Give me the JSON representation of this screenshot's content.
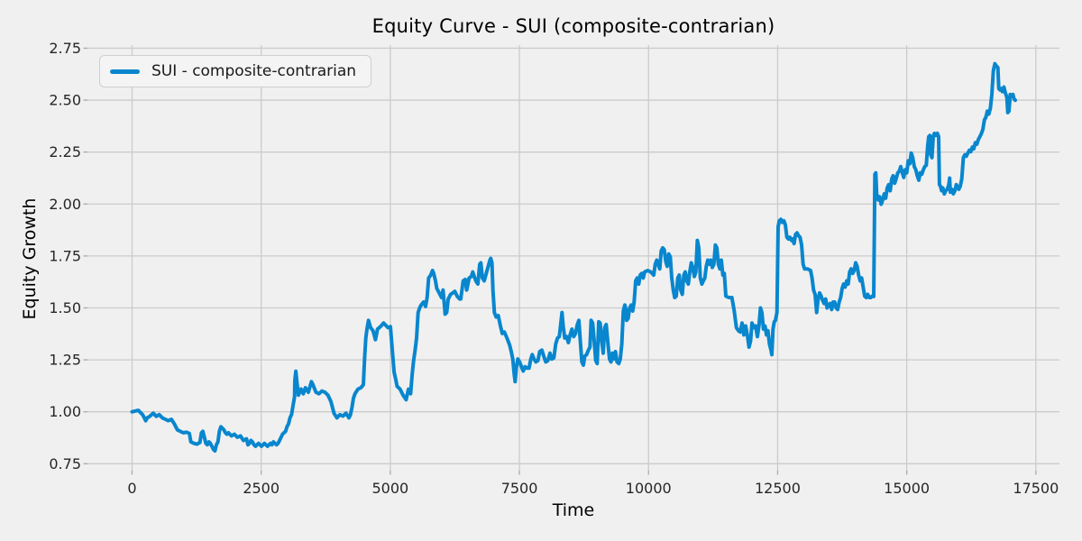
{
  "chart_data": {
    "type": "line",
    "title": "Equity Curve - SUI (composite-contrarian)",
    "xlabel": "Time",
    "ylabel": "Equity Growth",
    "background_color": "#f0f0f0",
    "grid": true,
    "grid_color": "#cbcbcb",
    "tick_color": "#262626",
    "tick_mark_color": "#a9a9a9",
    "xlim": [
      -864,
      17957
    ],
    "ylim": [
      0.7166,
      2.765
    ],
    "xticks": [
      {
        "value": 0,
        "label": "0"
      },
      {
        "value": 2500,
        "label": "2500"
      },
      {
        "value": 5000,
        "label": "5000"
      },
      {
        "value": 7500,
        "label": "7500"
      },
      {
        "value": 10000,
        "label": "10000"
      },
      {
        "value": 12500,
        "label": "12500"
      },
      {
        "value": 15000,
        "label": "15000"
      },
      {
        "value": 17500,
        "label": "17500"
      }
    ],
    "yticks": [
      {
        "value": 0.75,
        "label": "0.75"
      },
      {
        "value": 1.0,
        "label": "1.00"
      },
      {
        "value": 1.25,
        "label": "1.25"
      },
      {
        "value": 1.5,
        "label": "1.50"
      },
      {
        "value": 1.75,
        "label": "1.75"
      },
      {
        "value": 2.0,
        "label": "2.00"
      },
      {
        "value": 2.25,
        "label": "2.25"
      },
      {
        "value": 2.5,
        "label": "2.50"
      },
      {
        "value": 2.75,
        "label": "2.75"
      }
    ],
    "legend": {
      "position": "upper-left",
      "entries": [
        {
          "label": "SUI - composite-contrarian",
          "color": "#0886ce"
        }
      ]
    },
    "series": [
      {
        "name": "SUI - composite-contrarian",
        "color": "#0886ce",
        "line_width": 4,
        "x": [
          0,
          120,
          205,
          264,
          293,
          340,
          410,
          468,
          526,
          585,
          643,
          701,
          759,
          818,
          876,
          934,
          993,
          1051,
          1109,
          1138,
          1196,
          1255,
          1313,
          1342,
          1371,
          1400,
          1429,
          1458,
          1487,
          1516,
          1546,
          1575,
          1604,
          1633,
          1662,
          1691,
          1720,
          1749,
          1778,
          1807,
          1837,
          1866,
          1924,
          1982,
          2040,
          2099,
          2157,
          2215,
          2244,
          2273,
          2302,
          2331,
          2361,
          2390,
          2419,
          2448,
          2477,
          2506,
          2535,
          2564,
          2593,
          2622,
          2651,
          2680,
          2709,
          2738,
          2767,
          2797,
          2826,
          2855,
          2884,
          2913,
          2942,
          2971,
          3000,
          3029,
          3058,
          3087,
          3117,
          3146,
          3152,
          3170,
          3200,
          3222,
          3270,
          3315,
          3356,
          3414,
          3472,
          3502,
          3560,
          3618,
          3676,
          3734,
          3792,
          3850,
          3909,
          3967,
          4025,
          4083,
          4141,
          4200,
          4229,
          4258,
          4287,
          4316,
          4374,
          4432,
          4479,
          4502,
          4525,
          4549,
          4578,
          4618,
          4665,
          4712,
          4752,
          4811,
          4869,
          4898,
          4956,
          5003,
          5044,
          5073,
          5102,
          5131,
          5189,
          5247,
          5306,
          5352,
          5393,
          5422,
          5451,
          5480,
          5509,
          5538,
          5568,
          5597,
          5643,
          5684,
          5713,
          5742,
          5783,
          5818,
          5841,
          5876,
          5899,
          5946,
          5993,
          6022,
          6062,
          6092,
          6121,
          6167,
          6208,
          6249,
          6295,
          6342,
          6364,
          6411,
          6451,
          6480,
          6527,
          6568,
          6597,
          6626,
          6655,
          6696,
          6731,
          6754,
          6783,
          6818,
          6859,
          6899,
          6928,
          6946,
          6969,
          6987,
          7016,
          7051,
          7091,
          7132,
          7167,
          7208,
          7248,
          7283,
          7312,
          7341,
          7371,
          7400,
          7417,
          7440,
          7469,
          7504,
          7539,
          7574,
          7609,
          7644,
          7685,
          7720,
          7749,
          7784,
          7819,
          7859,
          7894,
          7935,
          7970,
          8011,
          8052,
          8092,
          8127,
          8168,
          8203,
          8238,
          8273,
          8302,
          8325,
          8348,
          8378,
          8413,
          8448,
          8482,
          8517,
          8552,
          8587,
          8622,
          8651,
          8680,
          8709,
          8738,
          8767,
          8802,
          8837,
          8866,
          8889,
          8918,
          8948,
          8977,
          9006,
          9035,
          9064,
          9093,
          9122,
          9151,
          9180,
          9215,
          9244,
          9273,
          9302,
          9331,
          9360,
          9390,
          9424,
          9453,
          9483,
          9512,
          9541,
          9564,
          9577,
          9606,
          9635,
          9664,
          9693,
          9722,
          9752,
          9781,
          9810,
          9839,
          9868,
          9897,
          9926,
          9984,
          10042,
          10101,
          10130,
          10159,
          10188,
          10217,
          10246,
          10275,
          10304,
          10334,
          10363,
          10392,
          10421,
          10450,
          10479,
          10508,
          10537,
          10566,
          10595,
          10625,
          10654,
          10683,
          10712,
          10741,
          10770,
          10799,
          10828,
          10857,
          10887,
          10916,
          10945,
          10974,
          11003,
          11032,
          11061,
          11090,
          11119,
          11148,
          11178,
          11207,
          11236,
          11265,
          11294,
          11323,
          11352,
          11381,
          11410,
          11439,
          11468,
          11497,
          11556,
          11614,
          11660,
          11701,
          11742,
          11777,
          11812,
          11847,
          11882,
          11917,
          11946,
          11975,
          12004,
          12039,
          12074,
          12109,
          12138,
          12167,
          12196,
          12225,
          12254,
          12284,
          12313,
          12342,
          12371,
          12388,
          12411,
          12435,
          12458,
          12487,
          12510,
          12533,
          12562,
          12592,
          12621,
          12650,
          12679,
          12708,
          12737,
          12766,
          12789,
          12818,
          12847,
          12876,
          12905,
          12934,
          12963,
          12993,
          13022,
          13080,
          13138,
          13167,
          13196,
          13226,
          13255,
          13284,
          13313,
          13342,
          13371,
          13400,
          13429,
          13458,
          13487,
          13517,
          13546,
          13575,
          13604,
          13633,
          13662,
          13691,
          13720,
          13749,
          13778,
          13807,
          13836,
          13866,
          13895,
          13924,
          13953,
          13982,
          14011,
          14040,
          14069,
          14098,
          14127,
          14156,
          14186,
          14215,
          14244,
          14273,
          14302,
          14331,
          14360,
          14383,
          14401,
          14418,
          14447,
          14476,
          14506,
          14535,
          14564,
          14593,
          14622,
          14651,
          14680,
          14709,
          14738,
          14767,
          14796,
          14826,
          14855,
          14884,
          14913,
          14942,
          14971,
          15000,
          15029,
          15058,
          15087,
          15116,
          15146,
          15175,
          15204,
          15233,
          15262,
          15291,
          15320,
          15349,
          15378,
          15407,
          15425,
          15448,
          15466,
          15489,
          15512,
          15535,
          15564,
          15593,
          15617,
          15634,
          15652,
          15675,
          15698,
          15727,
          15756,
          15785,
          15815,
          15831,
          15844,
          15873,
          15902,
          15931,
          15960,
          15989,
          16008,
          16037,
          16066,
          16095,
          16125,
          16154,
          16183,
          16212,
          16241,
          16270,
          16299,
          16328,
          16357,
          16386,
          16416,
          16445,
          16474,
          16503,
          16532,
          16561,
          16590,
          16619,
          16648,
          16677,
          16707,
          16736,
          16765,
          16782,
          16806,
          16829,
          16852,
          16881,
          16910,
          16939,
          16957,
          16980,
          17003,
          17027,
          17056,
          17079,
          17102
        ],
        "y": [
          1.0,
          1.007,
          0.986,
          0.957,
          0.971,
          0.978,
          0.993,
          0.978,
          0.986,
          0.971,
          0.964,
          0.957,
          0.964,
          0.942,
          0.913,
          0.906,
          0.899,
          0.902,
          0.896,
          0.855,
          0.848,
          0.844,
          0.852,
          0.899,
          0.906,
          0.877,
          0.848,
          0.841,
          0.855,
          0.848,
          0.834,
          0.819,
          0.812,
          0.841,
          0.855,
          0.906,
          0.928,
          0.921,
          0.913,
          0.899,
          0.892,
          0.899,
          0.884,
          0.892,
          0.877,
          0.884,
          0.862,
          0.87,
          0.841,
          0.848,
          0.862,
          0.855,
          0.841,
          0.834,
          0.841,
          0.848,
          0.841,
          0.834,
          0.841,
          0.848,
          0.841,
          0.834,
          0.841,
          0.848,
          0.841,
          0.855,
          0.848,
          0.841,
          0.848,
          0.862,
          0.877,
          0.892,
          0.899,
          0.906,
          0.928,
          0.942,
          0.971,
          0.986,
          1.03,
          1.073,
          1.152,
          1.195,
          1.123,
          1.08,
          1.11,
          1.087,
          1.116,
          1.094,
          1.145,
          1.13,
          1.094,
          1.087,
          1.1,
          1.094,
          1.08,
          1.05,
          0.993,
          0.971,
          0.986,
          0.979,
          0.993,
          0.971,
          0.986,
          1.022,
          1.065,
          1.087,
          1.109,
          1.116,
          1.13,
          1.253,
          1.355,
          1.398,
          1.44,
          1.405,
          1.39,
          1.347,
          1.398,
          1.41,
          1.427,
          1.42,
          1.405,
          1.41,
          1.28,
          1.19,
          1.16,
          1.123,
          1.109,
          1.08,
          1.058,
          1.109,
          1.087,
          1.174,
          1.246,
          1.297,
          1.355,
          1.478,
          1.5,
          1.514,
          1.528,
          1.507,
          1.55,
          1.644,
          1.658,
          1.68,
          1.666,
          1.63,
          1.594,
          1.572,
          1.55,
          1.586,
          1.47,
          1.478,
          1.543,
          1.565,
          1.572,
          1.58,
          1.557,
          1.543,
          1.543,
          1.63,
          1.637,
          1.586,
          1.644,
          1.651,
          1.673,
          1.651,
          1.63,
          1.615,
          1.71,
          1.717,
          1.644,
          1.63,
          1.666,
          1.702,
          1.73,
          1.738,
          1.717,
          1.586,
          1.478,
          1.456,
          1.463,
          1.413,
          1.377,
          1.384,
          1.362,
          1.34,
          1.32,
          1.29,
          1.254,
          1.18,
          1.145,
          1.21,
          1.254,
          1.24,
          1.217,
          1.196,
          1.217,
          1.21,
          1.21,
          1.254,
          1.275,
          1.254,
          1.24,
          1.247,
          1.29,
          1.297,
          1.268,
          1.24,
          1.247,
          1.282,
          1.254,
          1.26,
          1.326,
          1.355,
          1.362,
          1.427,
          1.478,
          1.413,
          1.355,
          1.362,
          1.333,
          1.37,
          1.398,
          1.362,
          1.377,
          1.42,
          1.44,
          1.34,
          1.24,
          1.225,
          1.268,
          1.275,
          1.297,
          1.311,
          1.44,
          1.427,
          1.34,
          1.247,
          1.232,
          1.433,
          1.427,
          1.34,
          1.282,
          1.405,
          1.42,
          1.326,
          1.254,
          1.24,
          1.282,
          1.254,
          1.29,
          1.24,
          1.232,
          1.254,
          1.326,
          1.485,
          1.514,
          1.49,
          1.44,
          1.45,
          1.5,
          1.514,
          1.485,
          1.528,
          1.63,
          1.644,
          1.615,
          1.658,
          1.666,
          1.644,
          1.673,
          1.68,
          1.673,
          1.658,
          1.71,
          1.73,
          1.71,
          1.688,
          1.774,
          1.789,
          1.78,
          1.723,
          1.7,
          1.76,
          1.745,
          1.644,
          1.586,
          1.55,
          1.557,
          1.644,
          1.658,
          1.586,
          1.565,
          1.658,
          1.673,
          1.63,
          1.615,
          1.673,
          1.717,
          1.695,
          1.651,
          1.673,
          1.825,
          1.789,
          1.644,
          1.615,
          1.63,
          1.644,
          1.7,
          1.73,
          1.71,
          1.73,
          1.695,
          1.71,
          1.803,
          1.789,
          1.71,
          1.688,
          1.73,
          1.658,
          1.666,
          1.557,
          1.55,
          1.55,
          1.485,
          1.405,
          1.39,
          1.384,
          1.427,
          1.37,
          1.413,
          1.362,
          1.311,
          1.34,
          1.427,
          1.405,
          1.413,
          1.362,
          1.413,
          1.5,
          1.478,
          1.398,
          1.413,
          1.37,
          1.39,
          1.326,
          1.297,
          1.275,
          1.398,
          1.433,
          1.44,
          1.478,
          1.89,
          1.919,
          1.926,
          1.912,
          1.919,
          1.9,
          1.84,
          1.832,
          1.84,
          1.825,
          1.832,
          1.81,
          1.854,
          1.861,
          1.847,
          1.84,
          1.803,
          1.71,
          1.688,
          1.688,
          1.68,
          1.644,
          1.586,
          1.565,
          1.478,
          1.543,
          1.572,
          1.557,
          1.536,
          1.521,
          1.543,
          1.5,
          1.514,
          1.521,
          1.492,
          1.528,
          1.528,
          1.5,
          1.492,
          1.528,
          1.55,
          1.594,
          1.615,
          1.6,
          1.63,
          1.615,
          1.673,
          1.688,
          1.666,
          1.68,
          1.717,
          1.7,
          1.658,
          1.63,
          1.644,
          1.6,
          1.557,
          1.55,
          1.565,
          1.55,
          1.55,
          1.557,
          1.555,
          2.143,
          2.15,
          2.049,
          2.02,
          2.035,
          1.999,
          2.02,
          2.049,
          2.028,
          2.078,
          2.093,
          2.064,
          2.122,
          2.136,
          2.1,
          2.122,
          2.15,
          2.158,
          2.18,
          2.15,
          2.128,
          2.165,
          2.15,
          2.208,
          2.194,
          2.245,
          2.223,
          2.18,
          2.165,
          2.136,
          2.115,
          2.15,
          2.143,
          2.165,
          2.18,
          2.187,
          2.281,
          2.324,
          2.33,
          2.237,
          2.223,
          2.324,
          2.34,
          2.33,
          2.34,
          2.324,
          2.093,
          2.086,
          2.064,
          2.078,
          2.049,
          2.064,
          2.071,
          2.093,
          2.125,
          2.057,
          2.071,
          2.049,
          2.064,
          2.093,
          2.078,
          2.071,
          2.086,
          2.122,
          2.223,
          2.237,
          2.23,
          2.245,
          2.259,
          2.252,
          2.274,
          2.266,
          2.295,
          2.288,
          2.31,
          2.324,
          2.339,
          2.36,
          2.404,
          2.418,
          2.447,
          2.433,
          2.462,
          2.527,
          2.642,
          2.675,
          2.664,
          2.657,
          2.556,
          2.549,
          2.556,
          2.541,
          2.563,
          2.535,
          2.513,
          2.44,
          2.447,
          2.527,
          2.519,
          2.527,
          2.505,
          2.5
        ]
      }
    ]
  }
}
